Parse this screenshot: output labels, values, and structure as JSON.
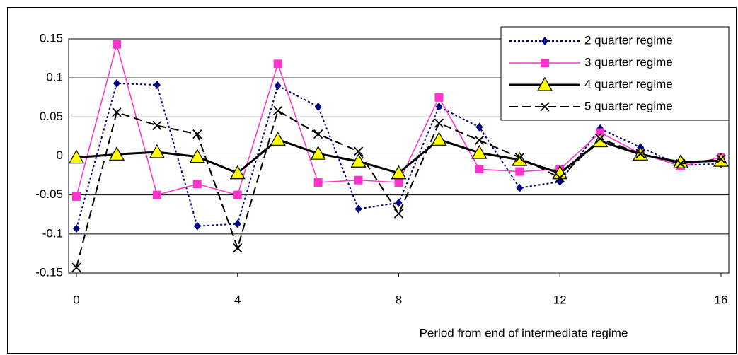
{
  "chart_data": {
    "type": "line",
    "x_label": "Period from end of intermediate regime",
    "x": [
      0,
      1,
      2,
      3,
      4,
      5,
      6,
      7,
      8,
      9,
      10,
      11,
      12,
      13,
      14,
      15,
      16
    ],
    "xlim": [
      0,
      16
    ],
    "xticks": [
      0,
      4,
      8,
      12,
      16
    ],
    "ylim": [
      -0.15,
      0.15
    ],
    "yticks": [
      -0.15,
      -0.1,
      -0.05,
      0,
      0.05,
      0.1,
      0.15
    ],
    "grid": true,
    "legend": "top-right",
    "series": [
      {
        "name": "2 quarter regime",
        "color": "#000080",
        "marker": "diamond",
        "dash": "dotted",
        "values": [
          -0.093,
          0.093,
          0.091,
          -0.09,
          -0.087,
          0.09,
          0.063,
          -0.068,
          -0.06,
          0.063,
          0.037,
          -0.041,
          -0.033,
          0.035,
          0.011,
          -0.012,
          -0.01
        ]
      },
      {
        "name": "3 quarter regime",
        "color": "#ff33cc",
        "marker": "square",
        "dash": "solid",
        "values": [
          -0.052,
          0.143,
          -0.05,
          -0.036,
          -0.05,
          0.118,
          -0.034,
          -0.031,
          -0.034,
          0.075,
          -0.017,
          -0.02,
          -0.017,
          0.03,
          0.003,
          -0.013,
          -0.002
        ]
      },
      {
        "name": "4 quarter regime",
        "color": "#000000",
        "marker": "triangle",
        "dash": "solid",
        "values": [
          -0.002,
          0.002,
          0.005,
          -0.001,
          -0.022,
          0.021,
          0.003,
          -0.007,
          -0.022,
          0.021,
          0.004,
          -0.005,
          -0.022,
          0.019,
          0.002,
          -0.008,
          -0.006
        ]
      },
      {
        "name": "5 quarter regime",
        "color": "#000000",
        "marker": "x",
        "dash": "dashed",
        "values": [
          -0.143,
          0.056,
          0.039,
          0.028,
          -0.118,
          0.058,
          0.028,
          0.006,
          -0.074,
          0.042,
          0.02,
          -0.002,
          -0.028,
          0.022,
          0.003,
          -0.01,
          -0.004
        ]
      }
    ]
  }
}
